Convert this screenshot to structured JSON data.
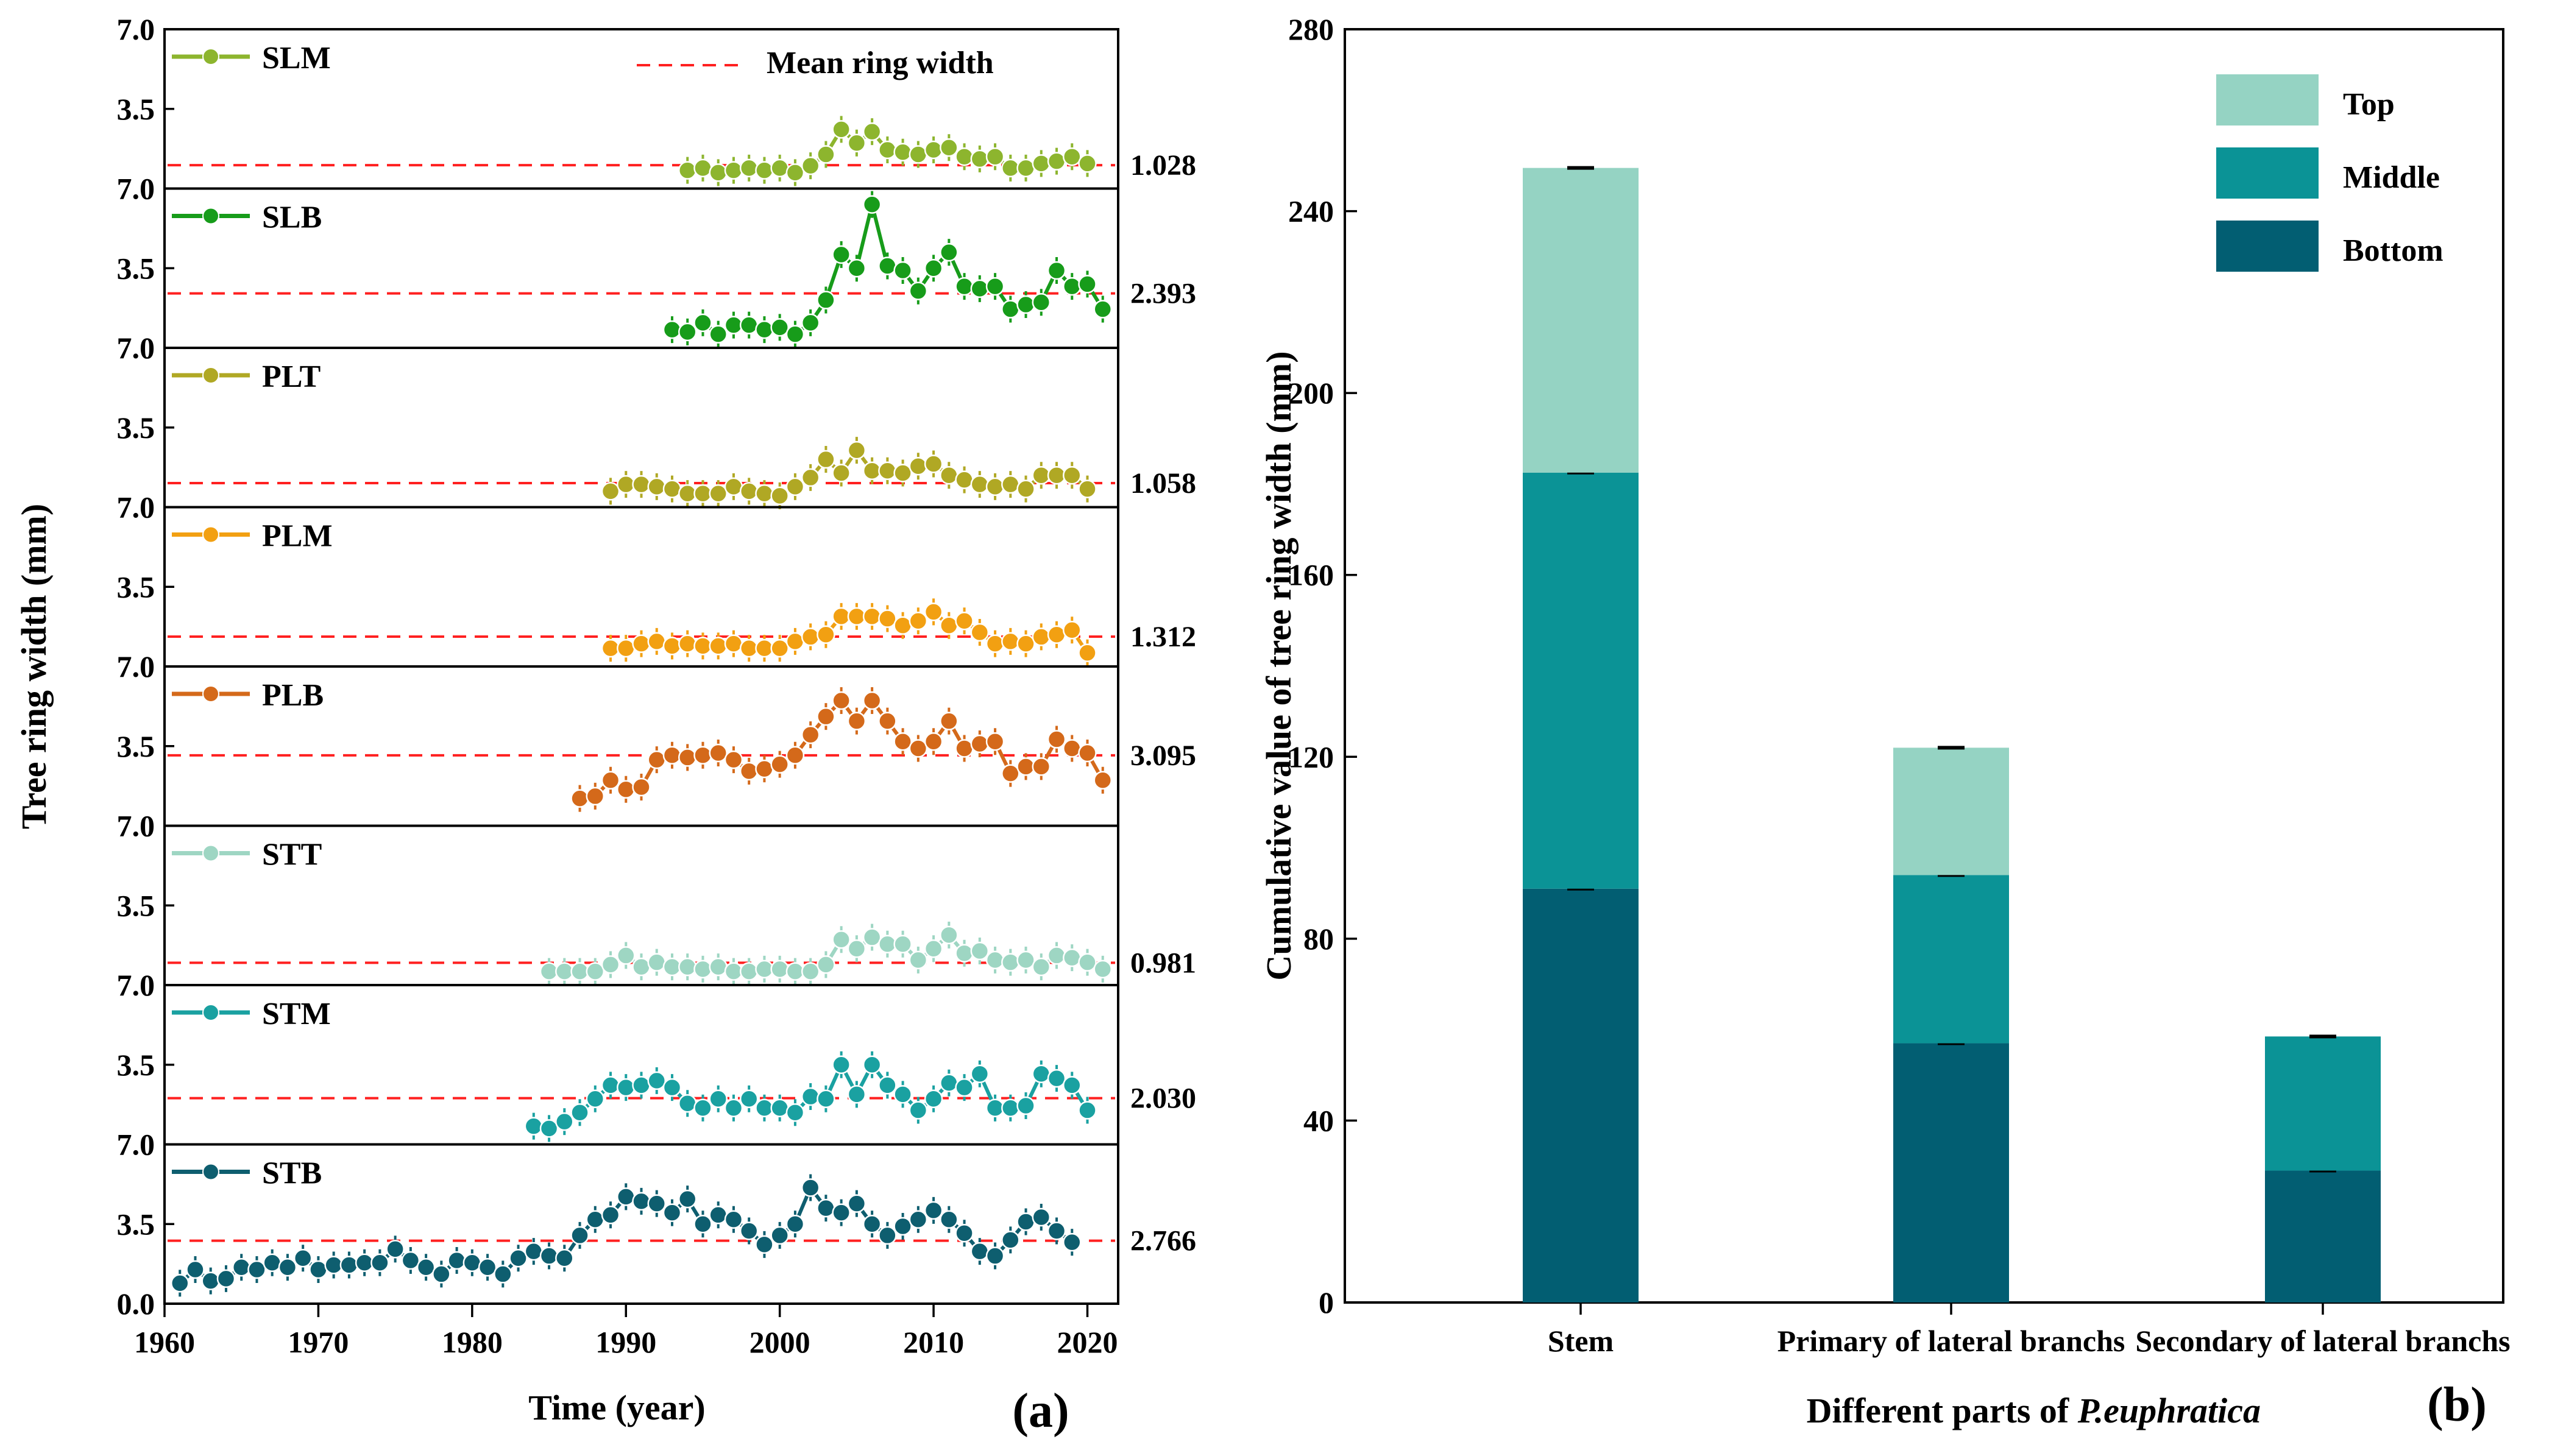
{
  "chart_data": [
    {
      "panel": "(a)",
      "type": "line",
      "xlabel": "Time (year)",
      "ylabel": "Tree ring width (mm)",
      "xlim": [
        1960,
        2022
      ],
      "x_ticks": [
        1960,
        1970,
        1980,
        1990,
        2000,
        2010,
        2020
      ],
      "ylim": [
        0,
        7
      ],
      "y_ticks": [
        "0.0",
        "3.5",
        "7.0"
      ],
      "mean_legend": "Mean ring width",
      "series": [
        {
          "name": "SLM",
          "color": "#8DB52E",
          "mean": 1.028,
          "mean_label": "1.028",
          "start": 1994,
          "values": [
            0.8,
            0.9,
            0.7,
            0.8,
            0.9,
            0.8,
            0.9,
            0.7,
            1.0,
            1.5,
            2.6,
            2.0,
            2.5,
            1.7,
            1.6,
            1.5,
            1.7,
            1.8,
            1.4,
            1.3,
            1.4,
            0.9,
            0.9,
            1.1,
            1.2,
            1.4,
            1.1
          ]
        },
        {
          "name": "SLB",
          "color": "#179C1A",
          "mean": 2.393,
          "mean_label": "2.393",
          "start": 1993,
          "values": [
            0.8,
            0.7,
            1.1,
            0.6,
            1.0,
            1.0,
            0.8,
            0.9,
            0.6,
            1.1,
            2.1,
            4.1,
            3.5,
            6.3,
            3.6,
            3.4,
            2.5,
            3.5,
            4.2,
            2.7,
            2.6,
            2.7,
            1.7,
            1.9,
            2.0,
            3.4,
            2.7,
            2.8,
            1.7
          ]
        },
        {
          "name": "PLT",
          "color": "#B0A824",
          "mean": 1.058,
          "mean_label": "1.058",
          "start": 1989,
          "values": [
            0.7,
            1.0,
            1.0,
            0.9,
            0.8,
            0.6,
            0.6,
            0.6,
            0.9,
            0.7,
            0.6,
            0.5,
            0.9,
            1.3,
            2.1,
            1.5,
            2.5,
            1.6,
            1.6,
            1.5,
            1.8,
            1.9,
            1.4,
            1.2,
            1.0,
            0.9,
            1.0,
            0.8,
            1.4,
            1.4,
            1.4,
            0.8
          ]
        },
        {
          "name": "PLM",
          "color": "#F2A012",
          "mean": 1.312,
          "mean_label": "1.312",
          "start": 1989,
          "values": [
            0.8,
            0.8,
            1.0,
            1.1,
            0.9,
            1.0,
            0.9,
            0.9,
            1.0,
            0.8,
            0.8,
            0.8,
            1.1,
            1.3,
            1.4,
            2.2,
            2.2,
            2.2,
            2.1,
            1.8,
            2.0,
            2.4,
            1.8,
            2.0,
            1.5,
            1.0,
            1.1,
            1.0,
            1.3,
            1.4,
            1.6,
            0.6
          ]
        },
        {
          "name": "PLB",
          "color": "#D4691A",
          "mean": 3.095,
          "mean_label": "3.095",
          "start": 1987,
          "values": [
            1.2,
            1.3,
            2.0,
            1.6,
            1.7,
            2.9,
            3.1,
            3.0,
            3.1,
            3.2,
            2.9,
            2.4,
            2.5,
            2.7,
            3.1,
            4.0,
            4.8,
            5.5,
            4.6,
            5.5,
            4.6,
            3.7,
            3.4,
            3.7,
            4.6,
            3.4,
            3.6,
            3.7,
            2.3,
            2.6,
            2.6,
            3.8,
            3.4,
            3.2,
            2.0
          ]
        },
        {
          "name": "STT",
          "color": "#9ED6C3",
          "mean": 0.981,
          "mean_label": "0.981",
          "start": 1985,
          "values": [
            0.6,
            0.6,
            0.6,
            0.6,
            0.9,
            1.3,
            0.8,
            1.0,
            0.8,
            0.8,
            0.7,
            0.8,
            0.6,
            0.6,
            0.7,
            0.7,
            0.6,
            0.6,
            0.9,
            2.0,
            1.6,
            2.1,
            1.8,
            1.8,
            1.1,
            1.6,
            2.2,
            1.4,
            1.5,
            1.1,
            1.0,
            1.1,
            0.8,
            1.3,
            1.2,
            1.0,
            0.7
          ]
        },
        {
          "name": "STM",
          "color": "#1AA1A1",
          "mean": 2.03,
          "mean_label": "2.030",
          "start": 1984,
          "values": [
            0.8,
            0.7,
            1.0,
            1.4,
            2.0,
            2.6,
            2.5,
            2.6,
            2.8,
            2.5,
            1.8,
            1.6,
            2.0,
            1.6,
            2.0,
            1.6,
            1.6,
            1.4,
            2.1,
            2.0,
            3.5,
            2.2,
            3.5,
            2.6,
            2.2,
            1.5,
            2.0,
            2.7,
            2.5,
            3.1,
            1.6,
            1.6,
            1.7,
            3.1,
            2.9,
            2.6,
            1.5
          ]
        },
        {
          "name": "STB",
          "color": "#0E5E6F",
          "mean": 2.766,
          "mean_label": "2.766",
          "start": 1961,
          "values": [
            0.9,
            1.5,
            1.0,
            1.1,
            1.6,
            1.5,
            1.8,
            1.6,
            2.0,
            1.5,
            1.7,
            1.7,
            1.8,
            1.8,
            2.4,
            1.9,
            1.6,
            1.3,
            1.9,
            1.8,
            1.6,
            1.3,
            2.0,
            2.3,
            2.1,
            2.0,
            3.0,
            3.7,
            3.9,
            4.7,
            4.5,
            4.4,
            4.0,
            4.6,
            3.5,
            3.9,
            3.7,
            3.2,
            2.6,
            3.0,
            3.5,
            5.1,
            4.2,
            4.0,
            4.4,
            3.5,
            3.0,
            3.4,
            3.7,
            4.1,
            3.7,
            3.1,
            2.3,
            2.1,
            2.8,
            3.6,
            3.8,
            3.2,
            2.7
          ]
        }
      ]
    },
    {
      "panel": "(b)",
      "type": "bar",
      "stacked": true,
      "xlabel": "Different parts of ",
      "xlabel_italic": "P.euphratica",
      "ylabel": "Cumulative value of tree ring width (mm)",
      "ylim": [
        0,
        280
      ],
      "y_ticks": [
        0,
        40,
        80,
        120,
        160,
        200,
        240,
        280
      ],
      "categories": [
        "Stem",
        "Primary of lateral branchs",
        "Secondary of lateral branchs"
      ],
      "series": [
        {
          "name": "Bottom",
          "color": "#025E72",
          "values": [
            91,
            57,
            29
          ]
        },
        {
          "name": "Middle",
          "color": "#0B9396",
          "values": [
            91.5,
            37,
            29.5
          ]
        },
        {
          "name": "Top",
          "color": "#95D3C3",
          "values": [
            67,
            28,
            0
          ]
        }
      ],
      "legend": [
        "Top",
        "Middle",
        "Bottom"
      ],
      "legend_position": "top-right"
    }
  ]
}
